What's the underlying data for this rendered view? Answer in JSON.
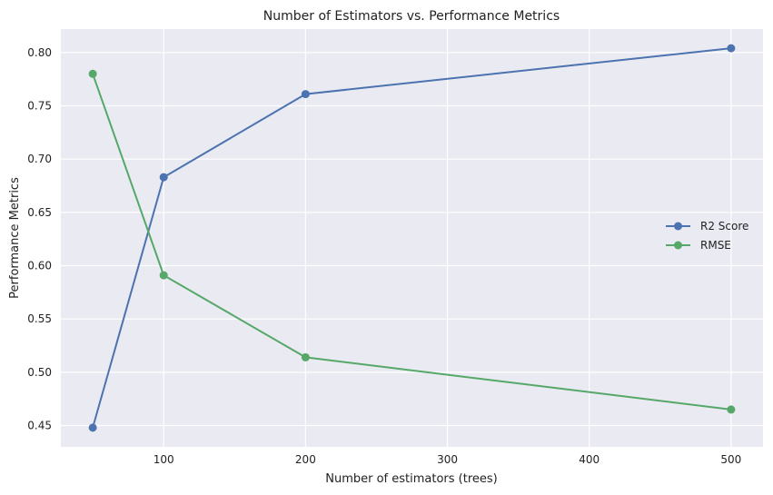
{
  "chart_data": {
    "type": "line",
    "title": "Number of Estimators vs. Performance Metrics",
    "xlabel": "Number of estimators (trees)",
    "ylabel": "Performance Metrics",
    "x": [
      50,
      100,
      200,
      500
    ],
    "series": [
      {
        "name": "R2 Score",
        "color": "#4c72b0",
        "values": [
          0.448,
          0.683,
          0.761,
          0.804
        ]
      },
      {
        "name": "RMSE",
        "color": "#55a868",
        "values": [
          0.78,
          0.591,
          0.514,
          0.465
        ]
      }
    ],
    "xlim": [
      27.5,
      522.5
    ],
    "ylim": [
      0.43,
      0.822
    ],
    "xticks": [
      100,
      200,
      300,
      400,
      500
    ],
    "yticks": [
      0.45,
      0.5,
      0.55,
      0.6,
      0.65,
      0.7,
      0.75,
      0.8
    ],
    "ytick_labels": [
      "0.45",
      "0.50",
      "0.55",
      "0.60",
      "0.65",
      "0.70",
      "0.75",
      "0.80"
    ],
    "grid": true,
    "legend": "center-right",
    "background": "#eaeaf2",
    "grid_color": "#ffffff"
  }
}
